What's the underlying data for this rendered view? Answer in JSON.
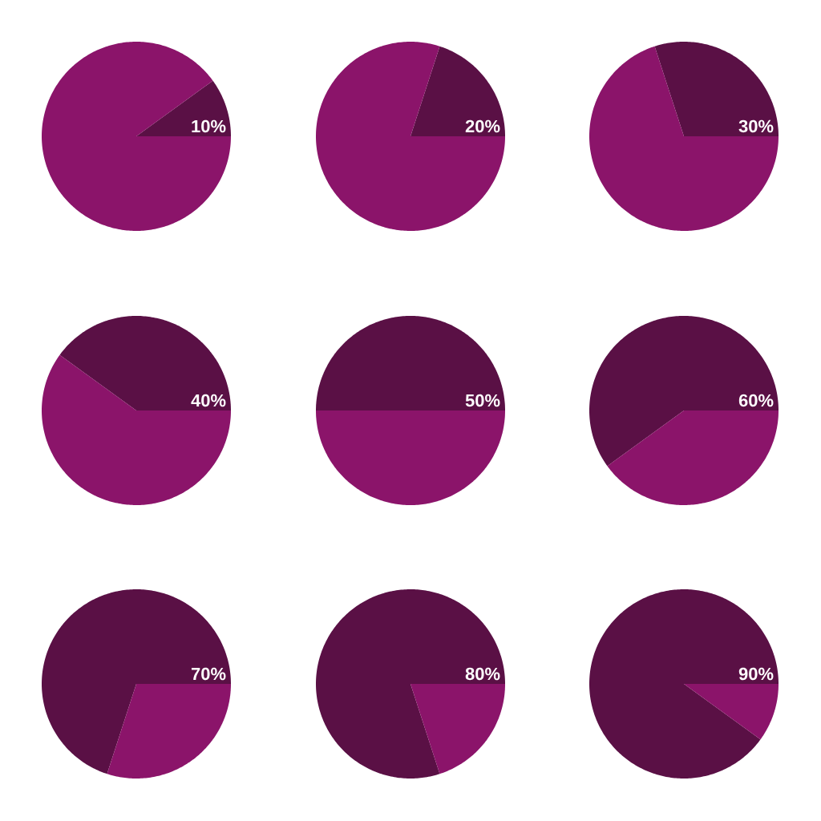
{
  "chart_data": [
    {
      "type": "pie",
      "categories": [
        null,
        null
      ],
      "values": [
        10,
        90
      ],
      "colors": [
        "#5a1045",
        "#8b146a"
      ],
      "value_labels": [
        "10%",
        null
      ]
    },
    {
      "type": "pie",
      "categories": [
        null,
        null
      ],
      "values": [
        20,
        80
      ],
      "colors": [
        "#5a1045",
        "#8b146a"
      ],
      "value_labels": [
        "20%",
        null
      ]
    },
    {
      "type": "pie",
      "categories": [
        null,
        null
      ],
      "values": [
        30,
        70
      ],
      "colors": [
        "#5a1045",
        "#8b146a"
      ],
      "value_labels": [
        "30%",
        null
      ]
    },
    {
      "type": "pie",
      "categories": [
        null,
        null
      ],
      "values": [
        40,
        60
      ],
      "colors": [
        "#5a1045",
        "#8b146a"
      ],
      "value_labels": [
        "40%",
        null
      ]
    },
    {
      "type": "pie",
      "categories": [
        null,
        null
      ],
      "values": [
        50,
        50
      ],
      "colors": [
        "#5a1045",
        "#8b146a"
      ],
      "value_labels": [
        "50%",
        null
      ]
    },
    {
      "type": "pie",
      "categories": [
        null,
        null
      ],
      "values": [
        60,
        40
      ],
      "colors": [
        "#5a1045",
        "#8b146a"
      ],
      "value_labels": [
        "60%",
        null
      ]
    },
    {
      "type": "pie",
      "categories": [
        null,
        null
      ],
      "values": [
        70,
        30
      ],
      "colors": [
        "#5a1045",
        "#8b146a"
      ],
      "value_labels": [
        "70%",
        null
      ]
    },
    {
      "type": "pie",
      "categories": [
        null,
        null
      ],
      "values": [
        80,
        20
      ],
      "colors": [
        "#5a1045",
        "#8b146a"
      ],
      "value_labels": [
        "80%",
        null
      ]
    },
    {
      "type": "pie",
      "categories": [
        null,
        null
      ],
      "values": [
        90,
        10
      ],
      "colors": [
        "#5a1045",
        "#8b146a"
      ],
      "value_labels": [
        "90%",
        null
      ]
    }
  ]
}
